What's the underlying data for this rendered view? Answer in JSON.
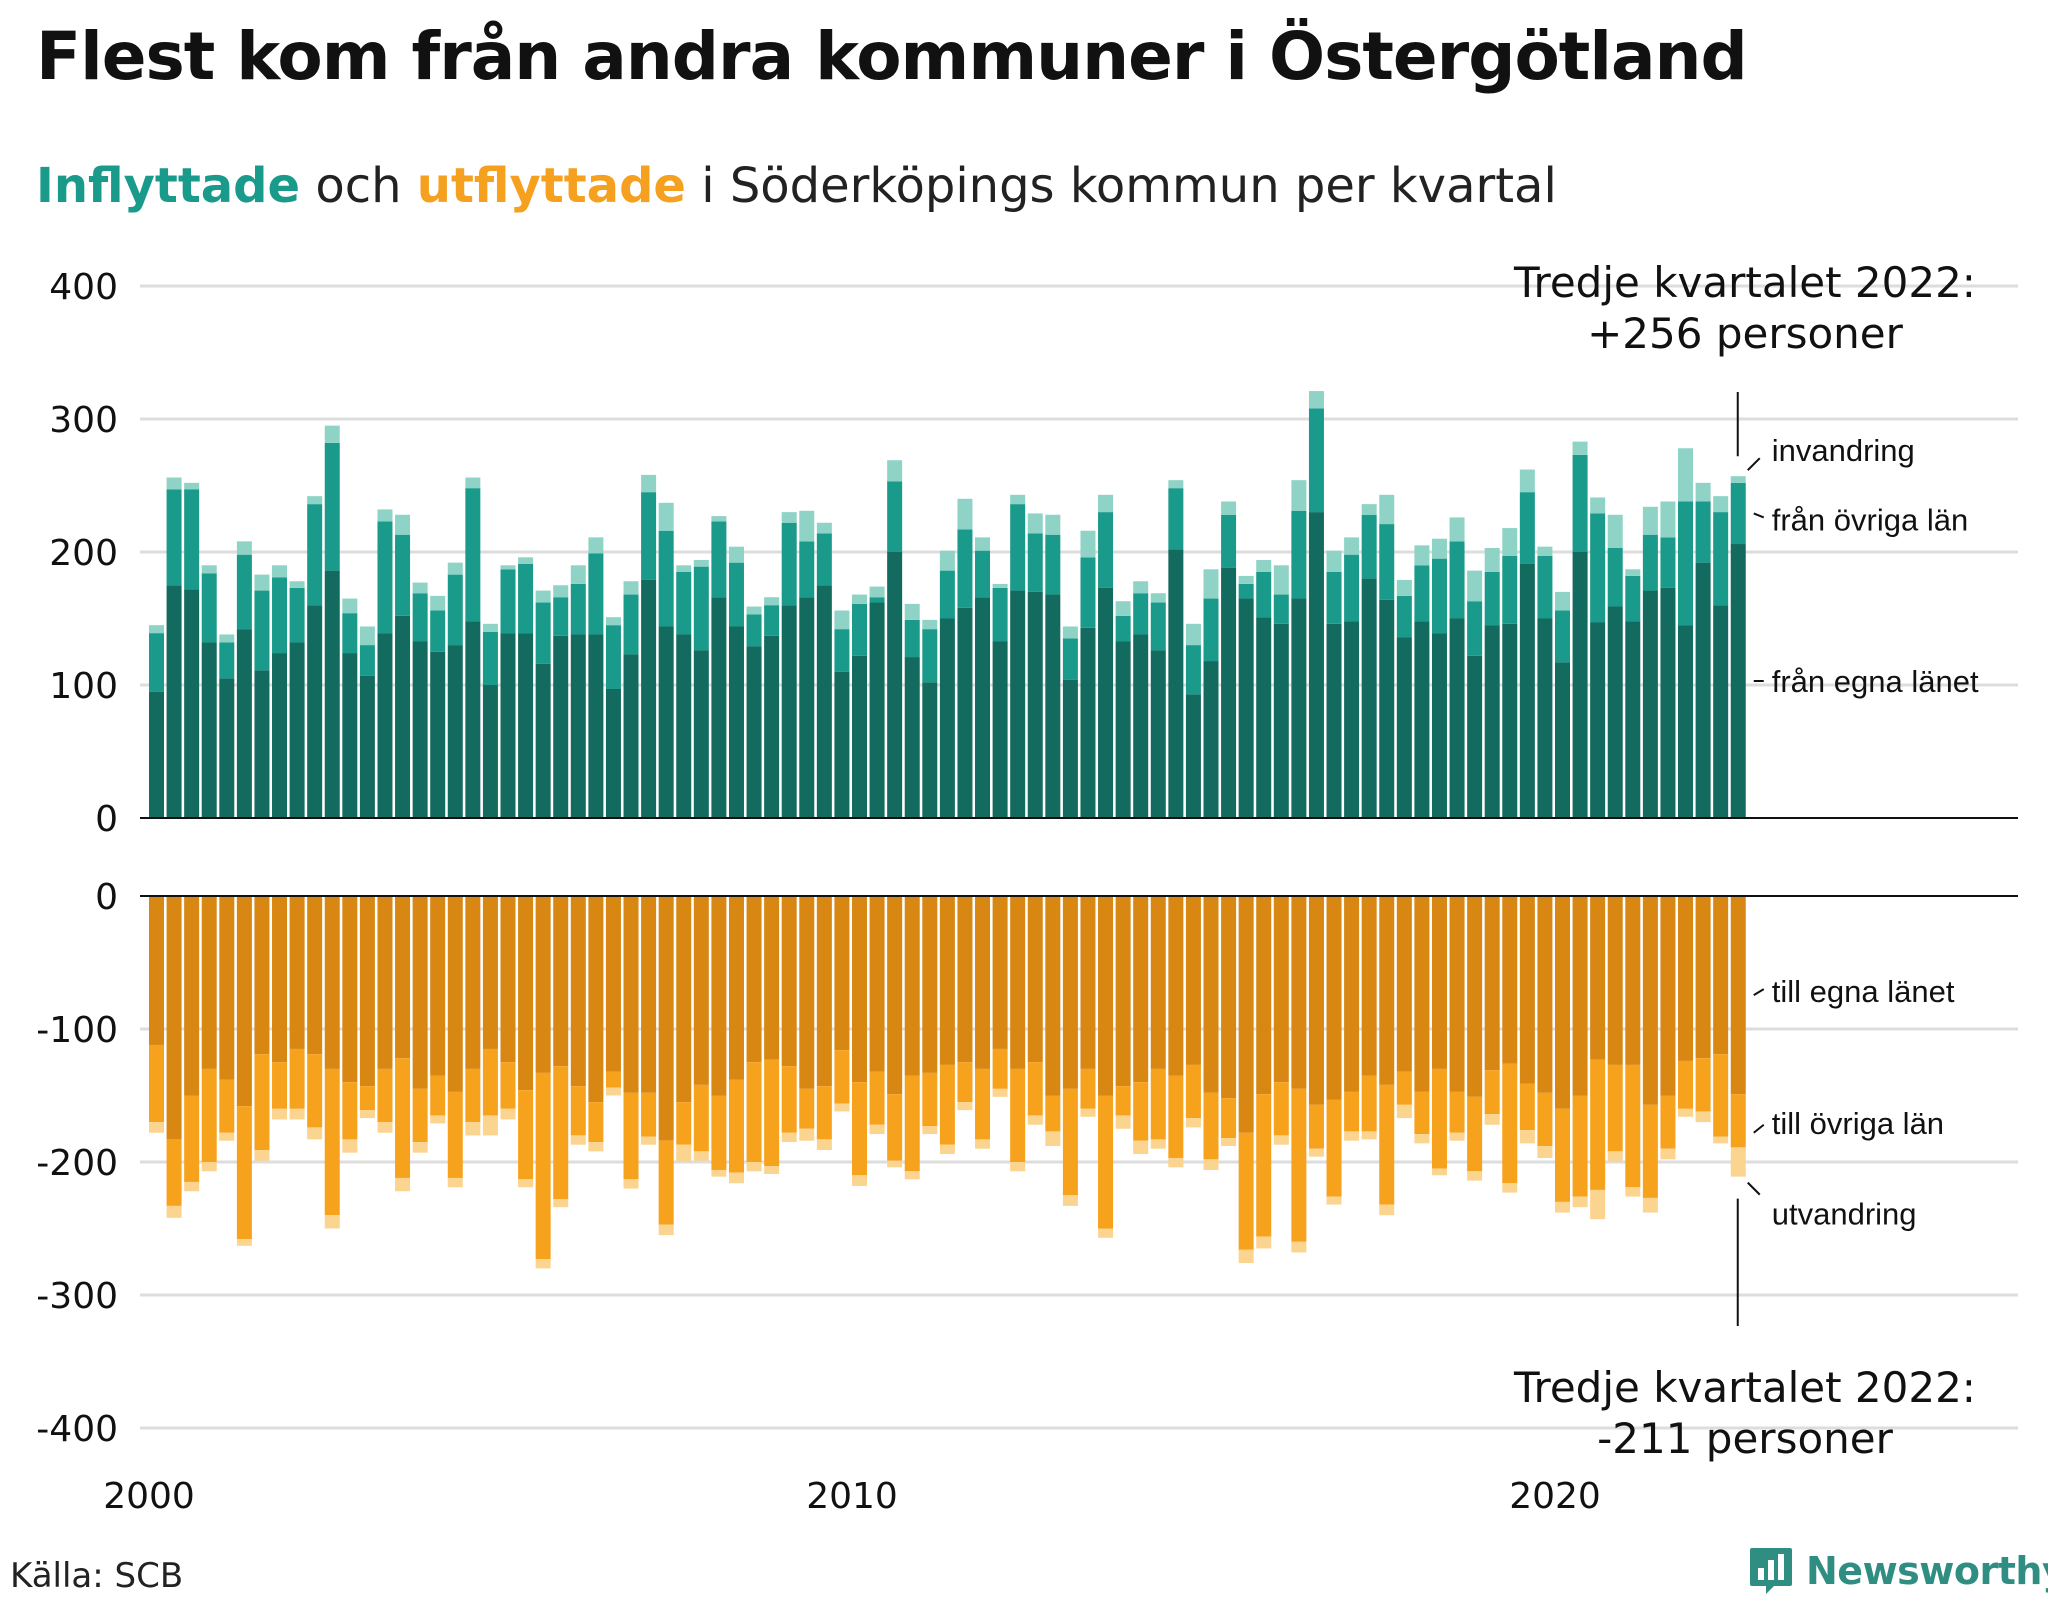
{
  "title": "Flest kom från andra kommuner i Östergötland",
  "subtitle": {
    "part1": "Inflyttade",
    "part2": " och ",
    "part3": "utflyttade",
    "part4": " i Söderköpings kommun per kvartal"
  },
  "source": "Källa: SCB",
  "brand": "Newsworthy",
  "colors": {
    "in_own": "#136a5f",
    "in_other": "#1a9a8a",
    "in_abroad": "#8fd3c6",
    "out_own": "#d78712",
    "out_other": "#f7a21c",
    "out_abroad": "#fbd490",
    "grid": "#dddddd",
    "text": "#111111"
  },
  "chart_data": {
    "type": "bar",
    "stacked": true,
    "title": "Flest kom från andra kommuner i Östergötland",
    "subtitle": "Inflyttade och utflyttade i Söderköpings kommun per kvartal",
    "x_range": [
      "2000 Q1",
      "2022 Q3"
    ],
    "x_ticks": [
      "2000",
      "2010",
      "2020"
    ],
    "y_ticks_top": [
      "0",
      "100",
      "200",
      "300",
      "400"
    ],
    "y_ticks_bottom": [
      "0",
      "-100",
      "-200",
      "-300",
      "-400"
    ],
    "ylim_top": [
      0,
      400
    ],
    "ylim_bottom": [
      -400,
      0
    ],
    "grid": true,
    "annotations": {
      "top_label_line1": "Tredje kvartalet 2022:",
      "top_label_line2": "+256 personer",
      "bottom_label_line1": "Tredje kvartalet 2022:",
      "bottom_label_line2": "-211 personer"
    },
    "series_labels": {
      "in_abroad": "invandring",
      "in_other": "från övriga län",
      "in_own": "från egna länet",
      "out_own": "till egna länet",
      "out_other": "till övriga län",
      "out_abroad": "utvandring"
    },
    "inflyttade": {
      "own": [
        95,
        175,
        172,
        132,
        105,
        142,
        111,
        124,
        132,
        160,
        186,
        124,
        107,
        139,
        152,
        133,
        125,
        130,
        148,
        100,
        139,
        139,
        116,
        137,
        138,
        138,
        97,
        123,
        179,
        144,
        138,
        126,
        166,
        144,
        129,
        137,
        160,
        166,
        175,
        110,
        122,
        162,
        200,
        121,
        102,
        150,
        158,
        166,
        133,
        171,
        170,
        168,
        104,
        143,
        173,
        133,
        138,
        126,
        202,
        93,
        118,
        188,
        165,
        151,
        146,
        165,
        230,
        146,
        148,
        180,
        164,
        136,
        148,
        139,
        150,
        122,
        145,
        146,
        191,
        150,
        117,
        200,
        147,
        159,
        148,
        171,
        173,
        145,
        192,
        160,
        206
      ],
      "other": [
        44,
        72,
        75,
        52,
        27,
        56,
        60,
        57,
        41,
        76,
        96,
        30,
        23,
        84,
        61,
        36,
        31,
        53,
        100,
        40,
        48,
        52,
        46,
        29,
        38,
        61,
        48,
        45,
        66,
        72,
        47,
        63,
        57,
        48,
        24,
        23,
        62,
        42,
        39,
        32,
        39,
        4,
        53,
        28,
        40,
        36,
        59,
        35,
        40,
        65,
        44,
        45,
        31,
        53,
        57,
        19,
        31,
        36,
        46,
        37,
        47,
        40,
        11,
        34,
        22,
        66,
        78,
        39,
        50,
        48,
        57,
        31,
        42,
        56,
        58,
        41,
        40,
        51,
        54,
        47,
        39,
        73,
        82,
        44,
        34,
        42,
        38,
        93,
        46,
        70,
        46
      ],
      "abroad": [
        6,
        9,
        5,
        6,
        6,
        10,
        12,
        9,
        5,
        6,
        13,
        11,
        14,
        9,
        15,
        8,
        11,
        9,
        8,
        6,
        3,
        5,
        9,
        9,
        14,
        12,
        6,
        10,
        13,
        21,
        5,
        5,
        4,
        12,
        6,
        6,
        8,
        23,
        8,
        14,
        7,
        8,
        16,
        12,
        7,
        15,
        23,
        10,
        3,
        7,
        15,
        15,
        9,
        20,
        13,
        11,
        9,
        7,
        6,
        16,
        22,
        10,
        6,
        9,
        22,
        23,
        13,
        16,
        13,
        8,
        22,
        12,
        15,
        15,
        18,
        23,
        18,
        21,
        17,
        7,
        14,
        10,
        12,
        25,
        5,
        21,
        27,
        40,
        14,
        12,
        5
      ]
    },
    "utflyttade": {
      "own": [
        112,
        183,
        150,
        130,
        138,
        158,
        119,
        125,
        115,
        119,
        130,
        140,
        143,
        130,
        122,
        145,
        135,
        147,
        130,
        115,
        125,
        146,
        133,
        128,
        143,
        155,
        132,
        148,
        148,
        184,
        155,
        142,
        150,
        138,
        125,
        123,
        128,
        145,
        143,
        116,
        140,
        132,
        149,
        135,
        133,
        127,
        125,
        130,
        115,
        130,
        125,
        150,
        145,
        130,
        150,
        143,
        140,
        130,
        135,
        127,
        148,
        152,
        178,
        149,
        140,
        145,
        157,
        153,
        147,
        135,
        142,
        132,
        147,
        130,
        147,
        151,
        131,
        126,
        141,
        148,
        160,
        150,
        123,
        127,
        127,
        157,
        150,
        124,
        122,
        119,
        149
      ],
      "other": [
        58,
        50,
        65,
        70,
        40,
        100,
        72,
        35,
        45,
        55,
        110,
        43,
        18,
        40,
        90,
        40,
        30,
        65,
        40,
        50,
        35,
        67,
        140,
        100,
        37,
        30,
        12,
        65,
        33,
        63,
        32,
        50,
        56,
        70,
        75,
        80,
        50,
        30,
        40,
        40,
        70,
        40,
        50,
        72,
        40,
        60,
        30,
        53,
        30,
        70,
        40,
        27,
        80,
        30,
        100,
        22,
        44,
        53,
        62,
        40,
        50,
        30,
        88,
        107,
        40,
        115,
        33,
        73,
        30,
        42,
        90,
        25,
        32,
        75,
        31,
        56,
        33,
        90,
        35,
        40,
        70,
        76,
        98,
        65,
        92,
        70,
        40,
        36,
        40,
        62,
        40
      ],
      "abroad": [
        8,
        9,
        7,
        7,
        6,
        5,
        8,
        8,
        8,
        9,
        10,
        10,
        6,
        8,
        10,
        8,
        6,
        7,
        10,
        15,
        8,
        6,
        7,
        6,
        7,
        7,
        6,
        7,
        6,
        8,
        13,
        7,
        5,
        8,
        7,
        6,
        7,
        9,
        8,
        6,
        8,
        7,
        5,
        6,
        6,
        7,
        6,
        7,
        6,
        7,
        7,
        11,
        8,
        6,
        7,
        10,
        10,
        7,
        7,
        7,
        8,
        6,
        10,
        9,
        7,
        8,
        6,
        6,
        7,
        6,
        8,
        10,
        7,
        5,
        6,
        7,
        8,
        7,
        10,
        9,
        8,
        8,
        22,
        8,
        7,
        11,
        8,
        6,
        8,
        5,
        22
      ]
    }
  }
}
